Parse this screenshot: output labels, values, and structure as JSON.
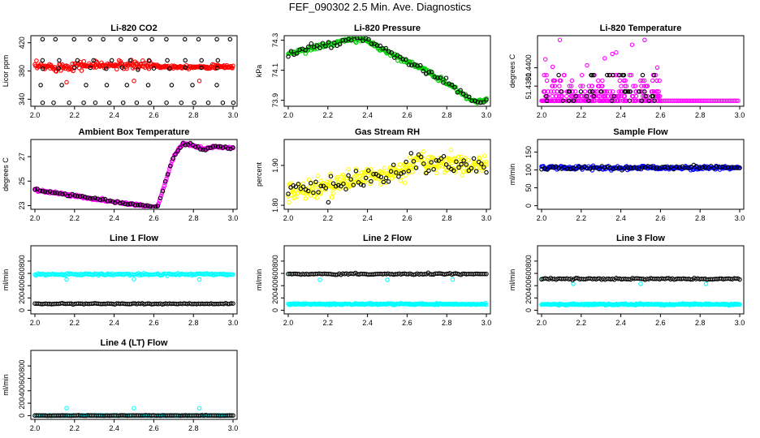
{
  "page_title": "FEF_090302  2.5 Min. Ave. Diagnostics",
  "colors": {
    "black": "#000000",
    "red": "#ff0000",
    "green": "#00cc00",
    "magenta": "#ff00ff",
    "yellow": "#ffff00",
    "blue": "#0000ff",
    "cyan": "#00ffff"
  },
  "chart_data": [
    {
      "type": "scatter",
      "title": "Li-820 CO2",
      "ylabel": "Licor ppm",
      "xlim": [
        2.0,
        3.0
      ],
      "ylim": [
        330,
        430
      ],
      "xticks": [
        "2.0",
        "2.2",
        "2.4",
        "2.6",
        "2.8",
        "3.0"
      ],
      "yticks": [
        "340",
        "380",
        "420"
      ],
      "series": [
        {
          "name": "points",
          "color": "red",
          "gen": "co2"
        },
        {
          "name": "outliers",
          "color": "black",
          "gen": "co2_out"
        }
      ]
    },
    {
      "type": "scatter",
      "title": "Li-820 Pressure",
      "ylabel": "kPa",
      "xlim": [
        2.0,
        3.0
      ],
      "ylim": [
        73.86,
        74.33
      ],
      "xticks": [
        "2.0",
        "2.2",
        "2.4",
        "2.6",
        "2.8",
        "3.0"
      ],
      "yticks": [
        "73.9",
        "74.1",
        "74.3"
      ],
      "series": [
        {
          "name": "points",
          "color": "green",
          "gen": "pressure"
        },
        {
          "name": "subset",
          "color": "black",
          "gen": "pressure_b"
        }
      ]
    },
    {
      "type": "scatter",
      "title": "Li-820 Temperature",
      "ylabel": "degrees C",
      "xlim": [
        2.0,
        3.0
      ],
      "ylim": [
        51.4358,
        51.4435
      ],
      "xticks": [
        "2.0",
        "2.2",
        "2.4",
        "2.6",
        "2.8",
        "3.0"
      ],
      "yticks": [
        "51.4380",
        "51.4400"
      ],
      "series": [
        {
          "name": "points",
          "color": "magenta",
          "gen": "ltemp"
        },
        {
          "name": "subset",
          "color": "black",
          "gen": "ltemp_b"
        }
      ]
    },
    {
      "type": "scatter",
      "title": "Ambient Box Temperature",
      "ylabel": "degrees C",
      "xlim": [
        2.0,
        3.0
      ],
      "ylim": [
        22.7,
        28.4
      ],
      "xticks": [
        "2.0",
        "2.2",
        "2.4",
        "2.6",
        "2.8",
        "3.0"
      ],
      "yticks": [
        "23",
        "25",
        "27"
      ],
      "series": [
        {
          "name": "points",
          "color": "magenta",
          "gen": "abox"
        },
        {
          "name": "subset",
          "color": "black",
          "gen": "abox_b"
        }
      ]
    },
    {
      "type": "scatter",
      "title": "Gas Stream RH",
      "ylabel": "percent",
      "xlim": [
        2.0,
        3.0
      ],
      "ylim": [
        1.79,
        1.965
      ],
      "xticks": [
        "2.0",
        "2.2",
        "2.4",
        "2.6",
        "2.8",
        "3.0"
      ],
      "yticks": [
        "1.80",
        "1.90"
      ],
      "series": [
        {
          "name": "points",
          "color": "yellow",
          "gen": "rh"
        },
        {
          "name": "subset",
          "color": "black",
          "gen": "rh_b"
        }
      ]
    },
    {
      "type": "scatter",
      "title": "Sample Flow",
      "ylabel": "ml/min",
      "xlim": [
        2.0,
        3.0
      ],
      "ylim": [
        -10,
        185
      ],
      "xticks": [
        "2.0",
        "2.2",
        "2.4",
        "2.6",
        "2.8",
        "3.0"
      ],
      "yticks": [
        "0",
        "50",
        "100",
        "150"
      ],
      "series": [
        {
          "name": "points",
          "color": "blue",
          "gen": "sflow"
        },
        {
          "name": "subset",
          "color": "black",
          "gen": "sflow_b"
        }
      ]
    },
    {
      "type": "scatter",
      "title": "Line 1 Flow",
      "ylabel": "ml/min",
      "xlim": [
        2.0,
        3.0
      ],
      "ylim": [
        -60,
        1050
      ],
      "xticks": [
        "2.0",
        "2.2",
        "2.4",
        "2.6",
        "2.8",
        "3.0"
      ],
      "yticks": [
        "0",
        "200",
        "400",
        "600",
        "800"
      ],
      "series": [
        {
          "name": "line1",
          "color": "cyan",
          "gen": "l1_main"
        },
        {
          "name": "other",
          "color": "black",
          "gen": "l1_low"
        }
      ]
    },
    {
      "type": "scatter",
      "title": "Line 2 Flow",
      "ylabel": "ml/min",
      "xlim": [
        2.0,
        3.0
      ],
      "ylim": [
        -60,
        1050
      ],
      "xticks": [
        "2.0",
        "2.2",
        "2.4",
        "2.6",
        "2.8",
        "3.0"
      ],
      "yticks": [
        "0",
        "200",
        "400",
        "600",
        "800"
      ],
      "series": [
        {
          "name": "line2",
          "color": "cyan",
          "gen": "l2_main"
        },
        {
          "name": "other",
          "color": "black",
          "gen": "l2_high"
        }
      ]
    },
    {
      "type": "scatter",
      "title": "Line 3 Flow",
      "ylabel": "ml/min",
      "xlim": [
        2.0,
        3.0
      ],
      "ylim": [
        -60,
        1050
      ],
      "xticks": [
        "2.0",
        "2.2",
        "2.4",
        "2.6",
        "2.8",
        "3.0"
      ],
      "yticks": [
        "0",
        "200",
        "400",
        "600",
        "800"
      ],
      "series": [
        {
          "name": "line3",
          "color": "cyan",
          "gen": "l3_main"
        },
        {
          "name": "other",
          "color": "black",
          "gen": "l3_high"
        }
      ]
    },
    {
      "type": "scatter",
      "title": "Line 4 (LT) Flow",
      "ylabel": "ml/min",
      "xlim": [
        2.0,
        3.0
      ],
      "ylim": [
        -60,
        1050
      ],
      "xticks": [
        "2.0",
        "2.2",
        "2.4",
        "2.6",
        "2.8",
        "3.0"
      ],
      "yticks": [
        "0",
        "200",
        "400",
        "600",
        "800"
      ],
      "series": [
        {
          "name": "line4",
          "color": "cyan",
          "gen": "l4_main"
        },
        {
          "name": "other",
          "color": "black",
          "gen": "l4_low"
        }
      ]
    }
  ]
}
